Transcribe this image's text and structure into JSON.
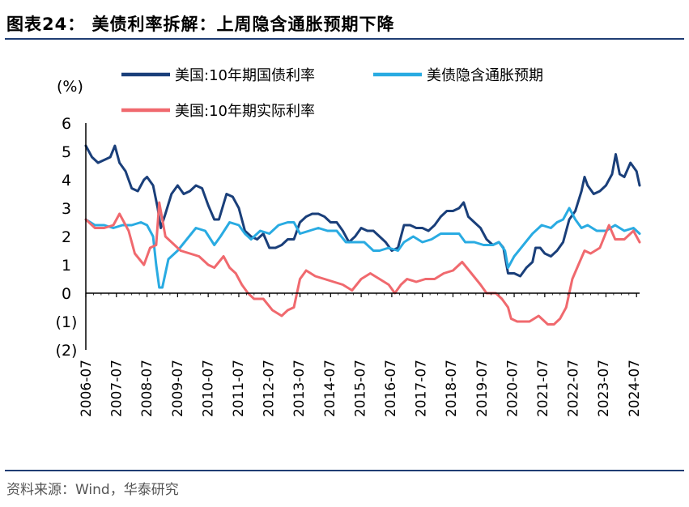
{
  "header": {
    "title": "图表24： 美债利率拆解：上周隐含通胀预期下降"
  },
  "footer": {
    "source": "资料来源：Wind，华泰研究"
  },
  "colors": {
    "nominal": "#1a3f7a",
    "breakeven": "#29abe2",
    "real": "#f0696e",
    "rule": "#1f3d73"
  },
  "chart_data": {
    "type": "line",
    "title": "",
    "ylabel": "(%)",
    "ylim": [
      -2,
      6
    ],
    "y_ticks": [
      6,
      5,
      4,
      3,
      2,
      1,
      0,
      -1,
      -2
    ],
    "y_tick_labels": [
      "6",
      "5",
      "4",
      "3",
      "2",
      "1",
      "0",
      "(1)",
      "(2)"
    ],
    "x_tick_labels": [
      "2006-07",
      "2007-07",
      "2008-07",
      "2009-07",
      "2010-07",
      "2011-07",
      "2012-07",
      "2013-07",
      "2014-07",
      "2015-07",
      "2016-07",
      "2017-07",
      "2018-07",
      "2019-07",
      "2020-07",
      "2021-07",
      "2022-07",
      "2023-07",
      "2024-07"
    ],
    "legend": [
      "美国:10年期国债利率",
      "美债隐含通胀预期",
      "美国:10年期实际利率"
    ],
    "legend_position": "top",
    "series": [
      {
        "name": "美国:10年期国债利率",
        "x": [
          2006.5,
          2006.7,
          2006.9,
          2007.1,
          2007.3,
          2007.45,
          2007.6,
          2007.8,
          2008.0,
          2008.2,
          2008.4,
          2008.5,
          2008.7,
          2008.85,
          2008.95,
          2009.1,
          2009.3,
          2009.5,
          2009.7,
          2009.9,
          2010.1,
          2010.3,
          2010.5,
          2010.7,
          2010.85,
          2011.1,
          2011.3,
          2011.5,
          2011.7,
          2011.9,
          2012.1,
          2012.3,
          2012.5,
          2012.7,
          2012.9,
          2013.1,
          2013.3,
          2013.5,
          2013.7,
          2013.9,
          2014.1,
          2014.3,
          2014.5,
          2014.7,
          2014.9,
          2015.1,
          2015.3,
          2015.5,
          2015.7,
          2015.9,
          2016.1,
          2016.3,
          2016.5,
          2016.7,
          2016.9,
          2017.1,
          2017.3,
          2017.5,
          2017.7,
          2017.9,
          2018.1,
          2018.3,
          2018.5,
          2018.7,
          2018.85,
          2019.0,
          2019.2,
          2019.4,
          2019.6,
          2019.8,
          2020.0,
          2020.15,
          2020.3,
          2020.5,
          2020.7,
          2020.9,
          2021.1,
          2021.2,
          2021.35,
          2021.5,
          2021.7,
          2021.9,
          2022.1,
          2022.3,
          2022.5,
          2022.7,
          2022.8,
          2022.9,
          2023.1,
          2023.3,
          2023.5,
          2023.7,
          2023.82,
          2023.95,
          2024.1,
          2024.3,
          2024.5,
          2024.6
        ],
        "values": [
          5.2,
          4.8,
          4.6,
          4.7,
          4.8,
          5.2,
          4.6,
          4.3,
          3.7,
          3.6,
          4.0,
          4.1,
          3.8,
          3.0,
          2.3,
          2.8,
          3.5,
          3.8,
          3.5,
          3.6,
          3.8,
          3.7,
          3.1,
          2.6,
          2.6,
          3.5,
          3.4,
          3.0,
          2.2,
          2.0,
          1.9,
          2.1,
          1.6,
          1.6,
          1.7,
          1.9,
          1.9,
          2.5,
          2.7,
          2.8,
          2.8,
          2.7,
          2.5,
          2.5,
          2.2,
          1.8,
          2.0,
          2.3,
          2.2,
          2.2,
          2.0,
          1.8,
          1.5,
          1.6,
          2.4,
          2.4,
          2.3,
          2.3,
          2.2,
          2.4,
          2.7,
          2.9,
          2.9,
          3.0,
          3.2,
          2.7,
          2.5,
          2.3,
          1.9,
          1.7,
          1.8,
          1.6,
          0.7,
          0.7,
          0.6,
          0.9,
          1.1,
          1.6,
          1.6,
          1.4,
          1.3,
          1.5,
          1.8,
          2.6,
          2.9,
          3.6,
          4.1,
          3.8,
          3.5,
          3.6,
          3.8,
          4.2,
          4.9,
          4.2,
          4.1,
          4.6,
          4.3,
          3.8
        ]
      },
      {
        "name": "美债隐含通胀预期",
        "x": [
          2006.5,
          2006.8,
          2007.1,
          2007.4,
          2007.7,
          2008.0,
          2008.3,
          2008.5,
          2008.7,
          2008.8,
          2008.9,
          2009.0,
          2009.2,
          2009.5,
          2009.8,
          2010.1,
          2010.4,
          2010.7,
          2010.9,
          2011.2,
          2011.5,
          2011.7,
          2011.9,
          2012.2,
          2012.5,
          2012.8,
          2013.1,
          2013.3,
          2013.5,
          2013.8,
          2014.1,
          2014.4,
          2014.7,
          2015.0,
          2015.3,
          2015.6,
          2015.9,
          2016.1,
          2016.4,
          2016.7,
          2016.9,
          2017.2,
          2017.5,
          2017.8,
          2018.1,
          2018.4,
          2018.7,
          2018.9,
          2019.2,
          2019.5,
          2019.8,
          2020.0,
          2020.2,
          2020.3,
          2020.5,
          2020.8,
          2021.1,
          2021.4,
          2021.7,
          2021.9,
          2022.1,
          2022.3,
          2022.5,
          2022.7,
          2022.9,
          2023.2,
          2023.5,
          2023.8,
          2024.1,
          2024.4,
          2024.6
        ],
        "values": [
          2.6,
          2.4,
          2.4,
          2.3,
          2.4,
          2.4,
          2.5,
          2.4,
          2.0,
          1.0,
          0.2,
          0.2,
          1.2,
          1.5,
          1.9,
          2.3,
          2.2,
          1.7,
          2.0,
          2.5,
          2.4,
          2.1,
          1.9,
          2.2,
          2.1,
          2.4,
          2.5,
          2.5,
          2.1,
          2.2,
          2.3,
          2.2,
          2.2,
          1.8,
          1.8,
          1.8,
          1.5,
          1.5,
          1.6,
          1.5,
          1.8,
          2.0,
          1.8,
          1.9,
          2.1,
          2.1,
          2.1,
          1.8,
          1.8,
          1.7,
          1.7,
          1.8,
          1.5,
          0.9,
          1.3,
          1.7,
          2.1,
          2.4,
          2.3,
          2.5,
          2.6,
          3.0,
          2.6,
          2.3,
          2.4,
          2.2,
          2.2,
          2.4,
          2.2,
          2.3,
          2.1
        ]
      },
      {
        "name": "美国:10年期实际利率",
        "x": [
          2006.5,
          2006.8,
          2007.1,
          2007.4,
          2007.6,
          2007.9,
          2008.1,
          2008.4,
          2008.6,
          2008.8,
          2008.9,
          2009.1,
          2009.3,
          2009.6,
          2009.9,
          2010.2,
          2010.5,
          2010.7,
          2011.0,
          2011.2,
          2011.4,
          2011.6,
          2011.8,
          2012.0,
          2012.3,
          2012.6,
          2012.9,
          2013.1,
          2013.3,
          2013.5,
          2013.7,
          2014.0,
          2014.3,
          2014.6,
          2014.9,
          2015.2,
          2015.5,
          2015.8,
          2016.1,
          2016.4,
          2016.6,
          2016.8,
          2017.0,
          2017.3,
          2017.6,
          2017.9,
          2018.2,
          2018.5,
          2018.8,
          2019.1,
          2019.4,
          2019.6,
          2019.9,
          2020.1,
          2020.3,
          2020.4,
          2020.6,
          2020.8,
          2021.0,
          2021.3,
          2021.6,
          2021.8,
          2022.0,
          2022.2,
          2022.4,
          2022.6,
          2022.8,
          2023.0,
          2023.3,
          2023.6,
          2023.8,
          2024.1,
          2024.4,
          2024.6
        ],
        "values": [
          2.6,
          2.3,
          2.3,
          2.4,
          2.8,
          2.2,
          1.4,
          1.0,
          1.6,
          1.7,
          3.2,
          2.0,
          1.8,
          1.5,
          1.4,
          1.3,
          1.0,
          0.9,
          1.3,
          0.9,
          0.7,
          0.3,
          0.0,
          -0.2,
          -0.2,
          -0.6,
          -0.8,
          -0.6,
          -0.5,
          0.5,
          0.8,
          0.6,
          0.5,
          0.4,
          0.3,
          0.1,
          0.5,
          0.7,
          0.5,
          0.3,
          0.0,
          0.3,
          0.5,
          0.4,
          0.5,
          0.5,
          0.7,
          0.8,
          1.1,
          0.7,
          0.3,
          0.0,
          0.0,
          -0.2,
          -0.5,
          -0.9,
          -1.0,
          -1.0,
          -1.0,
          -0.8,
          -1.1,
          -1.1,
          -0.9,
          -0.5,
          0.5,
          1.0,
          1.5,
          1.4,
          1.6,
          2.4,
          1.9,
          1.9,
          2.2,
          1.8
        ]
      }
    ]
  }
}
